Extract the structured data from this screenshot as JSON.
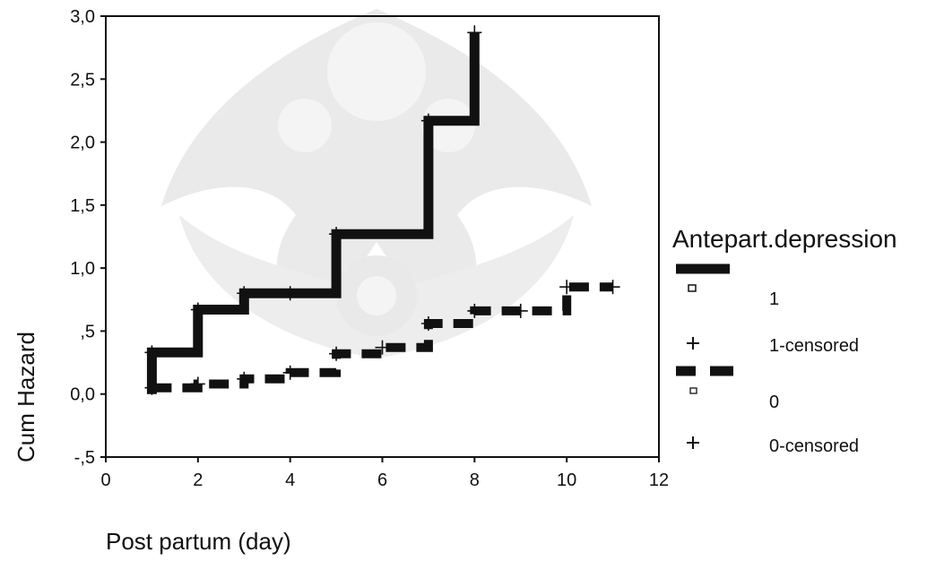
{
  "chart_data": {
    "type": "line",
    "step": true,
    "title": "",
    "xlabel": "Post partum (day)",
    "ylabel": "Cum Hazard",
    "xlim": [
      0,
      12
    ],
    "ylim": [
      -0.5,
      3.0
    ],
    "x_ticks": [
      0,
      2,
      4,
      6,
      8,
      10,
      12
    ],
    "x_tick_labels": [
      "0",
      "2",
      "4",
      "6",
      "8",
      "10",
      "12"
    ],
    "y_ticks": [
      3.0,
      2.5,
      2.0,
      1.5,
      1.0,
      0.5,
      0.0,
      -0.5
    ],
    "y_tick_labels": [
      "3,0",
      "2,5",
      "2,0",
      "1,5",
      "1,0",
      ",5",
      "0,0",
      "-,5"
    ],
    "grid": false,
    "legend": {
      "title": "Antepart.depression",
      "placement": "right",
      "entries": [
        {
          "kind": "line",
          "series": "1",
          "style": "solid"
        },
        {
          "kind": "marker",
          "marker": "square",
          "label": "1"
        },
        {
          "kind": "marker",
          "marker": "plus",
          "label": "1-censored"
        },
        {
          "kind": "line",
          "series": "0",
          "style": "dashed"
        },
        {
          "kind": "marker",
          "marker": "square",
          "label": "0"
        },
        {
          "kind": "marker",
          "marker": "plus",
          "label": "0-censored"
        }
      ]
    },
    "series": [
      {
        "name": "1",
        "style": "solid",
        "color": "#111111",
        "points": [
          [
            1,
            0.0
          ],
          [
            1,
            0.33
          ],
          [
            2,
            0.33
          ],
          [
            2,
            0.67
          ],
          [
            3,
            0.67
          ],
          [
            3,
            0.8
          ],
          [
            5,
            0.8
          ],
          [
            5,
            1.27
          ],
          [
            7,
            1.27
          ],
          [
            7,
            2.17
          ],
          [
            8,
            2.17
          ],
          [
            8,
            2.87
          ]
        ],
        "censored": [
          [
            1,
            0.33
          ],
          [
            2,
            0.67
          ],
          [
            3,
            0.8
          ],
          [
            4,
            0.8
          ],
          [
            5,
            1.27
          ],
          [
            7,
            2.17
          ],
          [
            8,
            2.87
          ]
        ]
      },
      {
        "name": "0",
        "style": "dashed",
        "color": "#111111",
        "points": [
          [
            1,
            0.05
          ],
          [
            2,
            0.05
          ],
          [
            2,
            0.08
          ],
          [
            3,
            0.08
          ],
          [
            3,
            0.12
          ],
          [
            4,
            0.12
          ],
          [
            4,
            0.17
          ],
          [
            5,
            0.17
          ],
          [
            5,
            0.32
          ],
          [
            6,
            0.32
          ],
          [
            6,
            0.37
          ],
          [
            7,
            0.37
          ],
          [
            7,
            0.56
          ],
          [
            8,
            0.56
          ],
          [
            8,
            0.66
          ],
          [
            10,
            0.66
          ],
          [
            10,
            0.85
          ],
          [
            11,
            0.85
          ]
        ],
        "censored": [
          [
            1,
            0.05
          ],
          [
            2,
            0.08
          ],
          [
            3,
            0.12
          ],
          [
            4,
            0.17
          ],
          [
            5,
            0.32
          ],
          [
            6,
            0.37
          ],
          [
            7,
            0.56
          ],
          [
            8,
            0.66
          ],
          [
            9,
            0.66
          ],
          [
            10,
            0.85
          ],
          [
            11,
            0.85
          ]
        ]
      }
    ]
  }
}
